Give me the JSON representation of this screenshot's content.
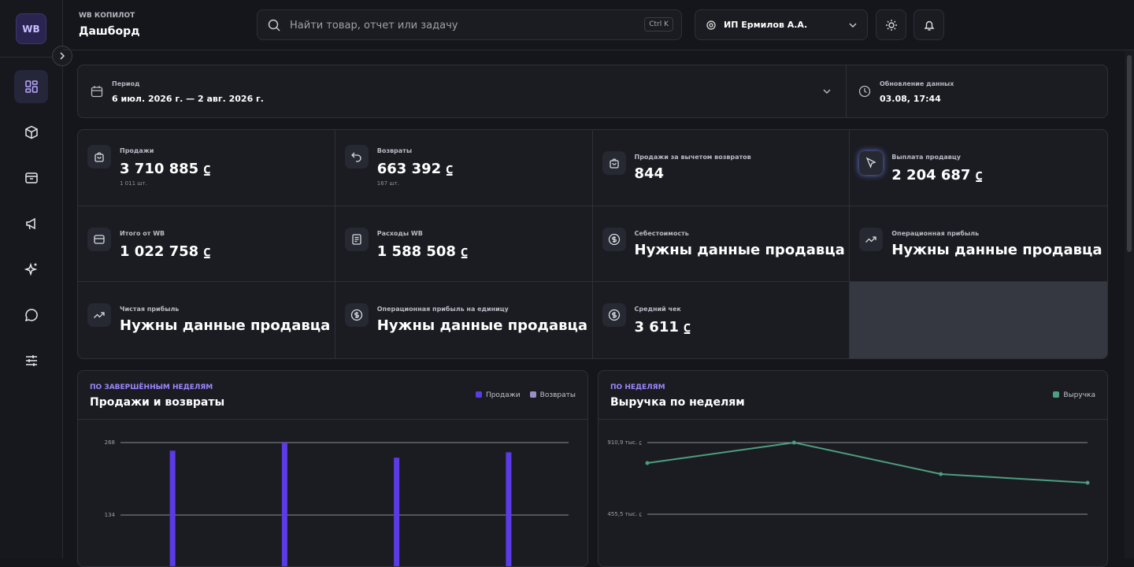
{
  "header": {
    "brand": "WB",
    "app_name": "WB КОПИЛОТ",
    "page_title": "Дашборд",
    "search_placeholder": "Найти товар, отчет или задачу",
    "search_shortcut": "Ctrl K",
    "account": "ИП Ермилов А.А."
  },
  "period": {
    "label": "Период",
    "value": "6 июл. 2026 г. — 2 авг. 2026 г.",
    "update_label": "Обновление данных",
    "update_value": "03.08, 17:44"
  },
  "metrics": [
    {
      "label": "Продажи",
      "value": "3 710 885 ⃀",
      "sub": "1 011 шт."
    },
    {
      "label": "Возвраты",
      "value": "663 392 ⃀",
      "sub": "167 шт."
    },
    {
      "label": "Продажи за вычетом возвратов",
      "value": "844"
    },
    {
      "label": "Выплата продавцу",
      "value": "2 204 687 ⃀"
    },
    {
      "label": "Итого от WB",
      "value": "1 022 758 ⃀"
    },
    {
      "label": "Расходы WB",
      "value": "1 588 508 ⃀"
    },
    {
      "label": "Себестоимость",
      "value": "Нужны данные продавца"
    },
    {
      "label": "Операционная прибыль",
      "value": "Нужны данные продавца"
    },
    {
      "label": "Чистая прибыль",
      "value": "Нужны данные продавца"
    },
    {
      "label": "Операционная прибыль на единицу",
      "value": "Нужны данные продавца"
    },
    {
      "label": "Средний чек",
      "value": "3 611 ⃀"
    }
  ],
  "chart_data": [
    {
      "type": "bar",
      "subtitle": "ПО ЗАВЕРШЁННЫМ НЕДЕЛЯМ",
      "title": "Продажи и возвраты",
      "categories": [
        null,
        null,
        null,
        null
      ],
      "series": [
        {
          "name": "Продажи",
          "color": "#5b3be6",
          "values": [
            253,
            268,
            240,
            250
          ]
        },
        {
          "name": "Возвраты",
          "color": "#9b8ec4",
          "values": [
            null,
            null,
            null,
            null
          ]
        }
      ],
      "ylim": [
        0,
        268
      ],
      "yticks": [
        134,
        268
      ],
      "grid": true
    },
    {
      "type": "line",
      "subtitle": "ПО НЕДЕЛЯМ",
      "title": "Выручка по неделям",
      "categories": [
        null,
        null,
        null,
        null
      ],
      "series": [
        {
          "name": "Выручка",
          "color": "#4c9f7d",
          "values": [
            780.8,
            910.9,
            710.7,
            655.6
          ]
        }
      ],
      "ylim": [
        0,
        910.9
      ],
      "yticks": [
        {
          "value": 455.5,
          "label": "455,5 тыс. ⃀"
        },
        {
          "value": 910.9,
          "label": "910,9 тыс. ⃀"
        }
      ],
      "grid": true
    }
  ]
}
